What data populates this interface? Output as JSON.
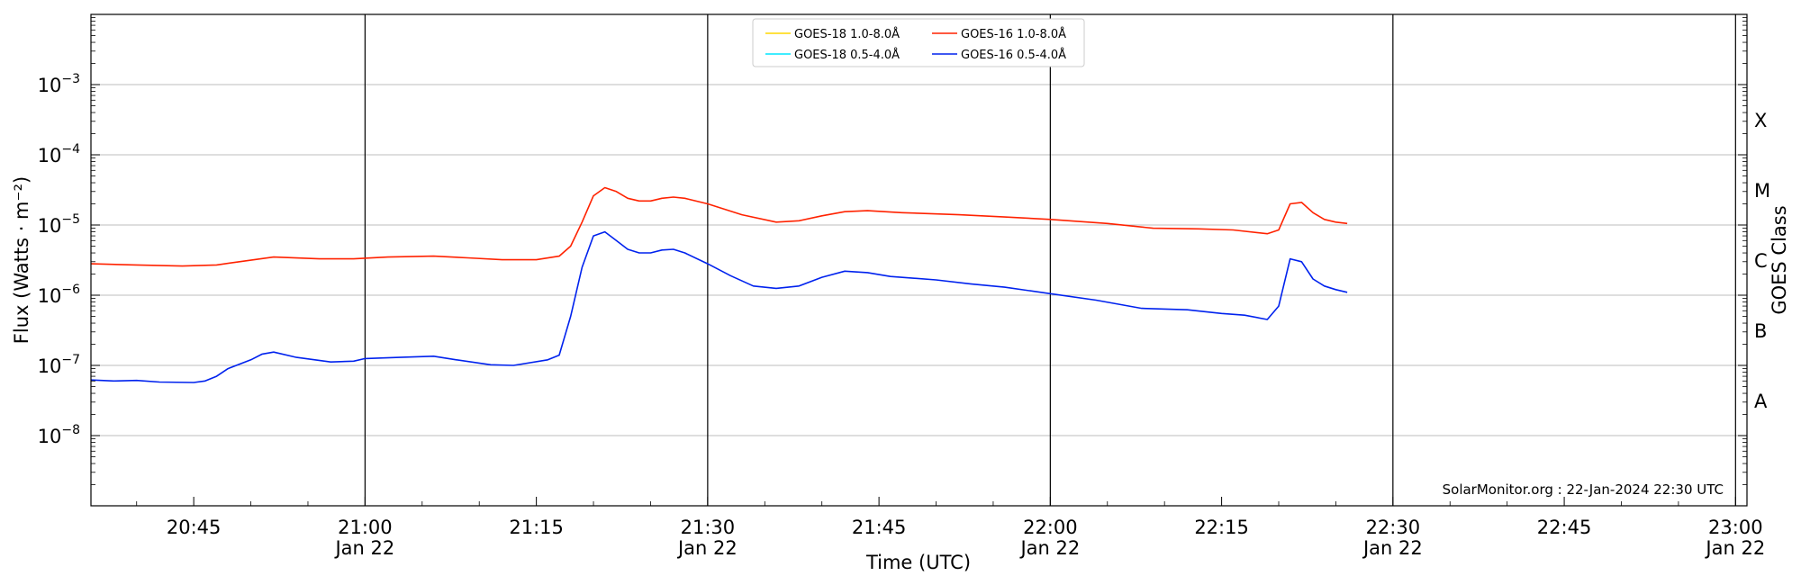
{
  "chart_data": {
    "type": "line",
    "title": "",
    "xlabel": "Time (UTC)",
    "ylabel": "Flux (Watts · m⁻²)",
    "y2label": "GOES Class",
    "yscale": "log",
    "xlim": [
      "20:36",
      "23:01"
    ],
    "ylim": [
      1e-09,
      0.01
    ],
    "grid": "horizontal at decades; vertical lines at 30-minute marks",
    "legend_position": "top-center",
    "x_ticks": [
      {
        "t": "20:45",
        "label": "20:45",
        "date": ""
      },
      {
        "t": "21:00",
        "label": "21:00",
        "date": "Jan 22"
      },
      {
        "t": "21:15",
        "label": "21:15",
        "date": ""
      },
      {
        "t": "21:30",
        "label": "21:30",
        "date": "Jan 22"
      },
      {
        "t": "21:45",
        "label": "21:45",
        "date": ""
      },
      {
        "t": "22:00",
        "label": "22:00",
        "date": "Jan 22"
      },
      {
        "t": "22:15",
        "label": "22:15",
        "date": ""
      },
      {
        "t": "22:30",
        "label": "22:30",
        "date": "Jan 22"
      },
      {
        "t": "22:45",
        "label": "22:45",
        "date": ""
      },
      {
        "t": "23:00",
        "label": "23:00",
        "date": "Jan 22"
      }
    ],
    "y_ticks": [
      {
        "value": 1e-08,
        "base": "10",
        "exp": "−8"
      },
      {
        "value": 1e-07,
        "base": "10",
        "exp": "−7"
      },
      {
        "value": 1e-06,
        "base": "10",
        "exp": "−6"
      },
      {
        "value": 1e-05,
        "base": "10",
        "exp": "−5"
      },
      {
        "value": 0.0001,
        "base": "10",
        "exp": "−4"
      },
      {
        "value": 0.001,
        "base": "10",
        "exp": "−3"
      }
    ],
    "goes_classes": [
      {
        "label": "A",
        "flux": 1e-08
      },
      {
        "label": "B",
        "flux": 1e-07
      },
      {
        "label": "C",
        "flux": 1e-06
      },
      {
        "label": "M",
        "flux": 1e-05
      },
      {
        "label": "X",
        "flux": 0.0001
      }
    ],
    "legend_entries": [
      {
        "label": "GOES-18 1.0-8.0Å",
        "color": "#ffd700"
      },
      {
        "label": "GOES-18 0.5-4.0Å",
        "color": "#00e5ff"
      },
      {
        "label": "GOES-16 1.0-8.0Å",
        "color": "#ff2200"
      },
      {
        "label": "GOES-16 0.5-4.0Å",
        "color": "#0022ee"
      }
    ],
    "series": [
      {
        "name": "GOES-16 1.0-8.0Å",
        "color": "#ff2200",
        "points": [
          [
            "20:36",
            2.8e-06
          ],
          [
            "20:40",
            2.7e-06
          ],
          [
            "20:44",
            2.6e-06
          ],
          [
            "20:47",
            2.7e-06
          ],
          [
            "20:49",
            3e-06
          ],
          [
            "20:52",
            3.5e-06
          ],
          [
            "20:56",
            3.3e-06
          ],
          [
            "20:59",
            3.3e-06
          ],
          [
            "21:02",
            3.5e-06
          ],
          [
            "21:06",
            3.6e-06
          ],
          [
            "21:09",
            3.4e-06
          ],
          [
            "21:12",
            3.2e-06
          ],
          [
            "21:15",
            3.2e-06
          ],
          [
            "21:17",
            3.6e-06
          ],
          [
            "21:18",
            5e-06
          ],
          [
            "21:19",
            1.1e-05
          ],
          [
            "21:20",
            2.6e-05
          ],
          [
            "21:21",
            3.4e-05
          ],
          [
            "21:22",
            3e-05
          ],
          [
            "21:23",
            2.4e-05
          ],
          [
            "21:24",
            2.2e-05
          ],
          [
            "21:25",
            2.2e-05
          ],
          [
            "21:26",
            2.4e-05
          ],
          [
            "21:27",
            2.5e-05
          ],
          [
            "21:28",
            2.4e-05
          ],
          [
            "21:30",
            2e-05
          ],
          [
            "21:33",
            1.4e-05
          ],
          [
            "21:36",
            1.1e-05
          ],
          [
            "21:38",
            1.15e-05
          ],
          [
            "21:40",
            1.35e-05
          ],
          [
            "21:42",
            1.55e-05
          ],
          [
            "21:44",
            1.6e-05
          ],
          [
            "21:47",
            1.5e-05
          ],
          [
            "21:52",
            1.4e-05
          ],
          [
            "21:56",
            1.3e-05
          ],
          [
            "22:00",
            1.2e-05
          ],
          [
            "22:05",
            1.05e-05
          ],
          [
            "22:09",
            9e-06
          ],
          [
            "22:13",
            8.8e-06
          ],
          [
            "22:16",
            8.5e-06
          ],
          [
            "22:19",
            7.5e-06
          ],
          [
            "22:20",
            8.5e-06
          ],
          [
            "22:21",
            2e-05
          ],
          [
            "22:22",
            2.1e-05
          ],
          [
            "22:23",
            1.5e-05
          ],
          [
            "22:24",
            1.2e-05
          ],
          [
            "22:25",
            1.1e-05
          ],
          [
            "22:26",
            1.05e-05
          ]
        ]
      },
      {
        "name": "GOES-16 0.5-4.0Å",
        "color": "#0022ee",
        "points": [
          [
            "20:36",
            6.2e-08
          ],
          [
            "20:38",
            6e-08
          ],
          [
            "20:40",
            6.1e-08
          ],
          [
            "20:42",
            5.8e-08
          ],
          [
            "20:45",
            5.7e-08
          ],
          [
            "20:46",
            6e-08
          ],
          [
            "20:47",
            7e-08
          ],
          [
            "20:48",
            9e-08
          ],
          [
            "20:50",
            1.2e-07
          ],
          [
            "20:51",
            1.45e-07
          ],
          [
            "20:52",
            1.55e-07
          ],
          [
            "20:54",
            1.3e-07
          ],
          [
            "20:57",
            1.12e-07
          ],
          [
            "20:59",
            1.15e-07
          ],
          [
            "21:00",
            1.25e-07
          ],
          [
            "21:03",
            1.3e-07
          ],
          [
            "21:06",
            1.35e-07
          ],
          [
            "21:08",
            1.2e-07
          ],
          [
            "21:11",
            1.02e-07
          ],
          [
            "21:13",
            1e-07
          ],
          [
            "21:16",
            1.2e-07
          ],
          [
            "21:17",
            1.4e-07
          ],
          [
            "21:18",
            5e-07
          ],
          [
            "21:19",
            2.5e-06
          ],
          [
            "21:20",
            7e-06
          ],
          [
            "21:21",
            8e-06
          ],
          [
            "21:22",
            6e-06
          ],
          [
            "21:23",
            4.5e-06
          ],
          [
            "21:24",
            4e-06
          ],
          [
            "21:25",
            4e-06
          ],
          [
            "21:26",
            4.4e-06
          ],
          [
            "21:27",
            4.5e-06
          ],
          [
            "21:28",
            4e-06
          ],
          [
            "21:30",
            2.8e-06
          ],
          [
            "21:32",
            1.9e-06
          ],
          [
            "21:34",
            1.35e-06
          ],
          [
            "21:36",
            1.25e-06
          ],
          [
            "21:38",
            1.35e-06
          ],
          [
            "21:40",
            1.8e-06
          ],
          [
            "21:42",
            2.2e-06
          ],
          [
            "21:44",
            2.1e-06
          ],
          [
            "21:46",
            1.85e-06
          ],
          [
            "21:50",
            1.65e-06
          ],
          [
            "21:53",
            1.45e-06
          ],
          [
            "21:56",
            1.3e-06
          ],
          [
            "22:00",
            1.05e-06
          ],
          [
            "22:04",
            8.5e-07
          ],
          [
            "22:08",
            6.5e-07
          ],
          [
            "22:12",
            6.2e-07
          ],
          [
            "22:15",
            5.5e-07
          ],
          [
            "22:17",
            5.2e-07
          ],
          [
            "22:19",
            4.5e-07
          ],
          [
            "22:20",
            7e-07
          ],
          [
            "22:21",
            3.3e-06
          ],
          [
            "22:22",
            3e-06
          ],
          [
            "22:23",
            1.7e-06
          ],
          [
            "22:24",
            1.35e-06
          ],
          [
            "22:25",
            1.2e-06
          ],
          [
            "22:26",
            1.1e-06
          ]
        ]
      },
      {
        "name": "GOES-18 1.0-8.0Å",
        "color": "#ffd700",
        "points": []
      },
      {
        "name": "GOES-18 0.5-4.0Å",
        "color": "#00e5ff",
        "points": []
      }
    ],
    "annotation": "SolarMonitor.org : 22-Jan-2024 22:30 UTC"
  }
}
